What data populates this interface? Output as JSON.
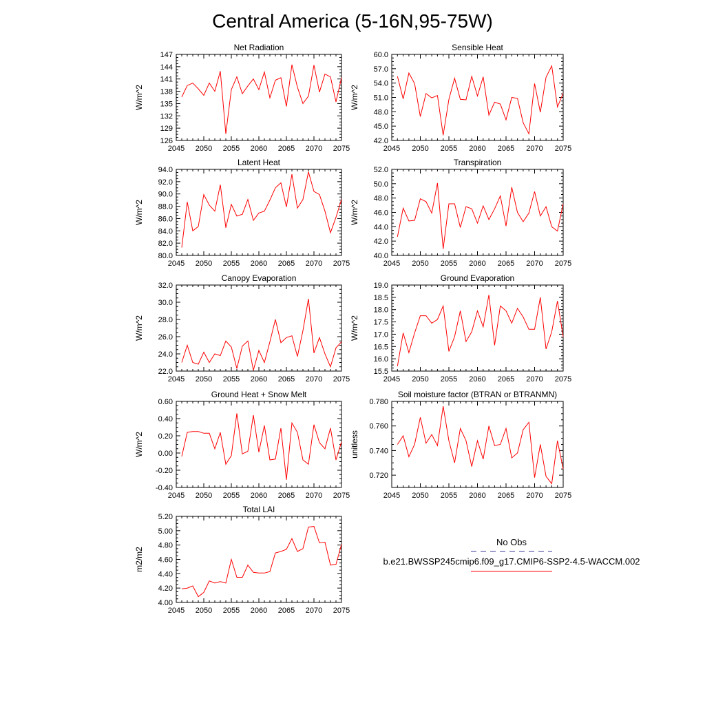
{
  "title": "Central America (5-16N,95-75W)",
  "colors": {
    "model_line": "#ff0000",
    "obs_line": "#3a3a9a",
    "axis": "#000000"
  },
  "legend": {
    "obs_label": "No Obs",
    "model_label": "b.e21.BWSSP245cmip6.f09_g17.CMIP6-SSP2-4.5-WACCM.002"
  },
  "chart_data": [
    {
      "type": "line",
      "title": "Net Radiation",
      "ylabel": "W/m^2",
      "xlim": [
        2045,
        2075
      ],
      "ylim": [
        126,
        147
      ],
      "xticks": [
        "2045",
        "2050",
        "2055",
        "2060",
        "2065",
        "2070",
        "2075"
      ],
      "yticks": [
        "126",
        "129",
        "132",
        "135",
        "138",
        "141",
        "144",
        "147"
      ],
      "series": [
        {
          "x": [
            2046,
            2047,
            2048,
            2049,
            2050,
            2051,
            2052,
            2053,
            2054,
            2055,
            2056,
            2057,
            2058,
            2059,
            2060,
            2061,
            2062,
            2063,
            2064,
            2065,
            2066,
            2067,
            2068,
            2069,
            2070,
            2071,
            2072,
            2073,
            2074,
            2075
          ],
          "values": [
            136.6,
            139.4,
            140.0,
            138.6,
            137.0,
            140.0,
            138.0,
            142.9,
            127.6,
            138.4,
            141.5,
            137.4,
            139.3,
            141.0,
            138.4,
            142.7,
            136.4,
            140.7,
            141.3,
            134.3,
            144.5,
            139.0,
            135.0,
            136.8,
            144.4,
            137.8,
            142.2,
            141.5,
            135.4,
            141.3
          ]
        }
      ]
    },
    {
      "type": "line",
      "title": "Sensible Heat",
      "ylabel": "W/m^2",
      "xlim": [
        2045,
        2075
      ],
      "ylim": [
        42,
        60
      ],
      "xticks": [
        "2045",
        "2050",
        "2055",
        "2060",
        "2065",
        "2070",
        "2075"
      ],
      "yticks": [
        "42.0",
        "45.0",
        "48.0",
        "51.0",
        "54.0",
        "57.0",
        "60.0"
      ],
      "series": [
        {
          "x": [
            2046,
            2047,
            2048,
            2049,
            2050,
            2051,
            2052,
            2053,
            2054,
            2055,
            2056,
            2057,
            2058,
            2059,
            2060,
            2061,
            2062,
            2063,
            2064,
            2065,
            2066,
            2067,
            2068,
            2069,
            2070,
            2071,
            2072,
            2073,
            2074,
            2075
          ],
          "values": [
            55.4,
            50.7,
            56.1,
            53.9,
            47.0,
            51.8,
            50.9,
            51.4,
            43.1,
            50.6,
            55.0,
            50.6,
            50.5,
            55.4,
            51.3,
            55.3,
            47.3,
            50.0,
            49.6,
            46.3,
            51.0,
            50.8,
            45.7,
            43.4,
            53.9,
            47.9,
            55.2,
            57.6,
            49.0,
            51.9
          ]
        }
      ]
    },
    {
      "type": "line",
      "title": "Latent Heat",
      "ylabel": "W/m^2",
      "xlim": [
        2045,
        2075
      ],
      "ylim": [
        80,
        94
      ],
      "xticks": [
        "2045",
        "2050",
        "2055",
        "2060",
        "2065",
        "2070",
        "2075"
      ],
      "yticks": [
        "80.0",
        "82.0",
        "84.0",
        "86.0",
        "88.0",
        "90.0",
        "92.0",
        "94.0"
      ],
      "series": [
        {
          "x": [
            2046,
            2047,
            2048,
            2049,
            2050,
            2051,
            2052,
            2053,
            2054,
            2055,
            2056,
            2057,
            2058,
            2059,
            2060,
            2061,
            2062,
            2063,
            2064,
            2065,
            2066,
            2067,
            2068,
            2069,
            2070,
            2071,
            2072,
            2073,
            2074,
            2075
          ],
          "values": [
            81.3,
            88.7,
            84.0,
            84.7,
            89.9,
            88.2,
            87.2,
            91.5,
            84.5,
            88.3,
            86.4,
            86.7,
            89.1,
            85.7,
            86.9,
            87.2,
            89.0,
            91.0,
            91.8,
            87.9,
            93.2,
            87.7,
            89.1,
            93.6,
            90.4,
            89.9,
            87.2,
            83.7,
            86.2,
            89.1
          ]
        }
      ]
    },
    {
      "type": "line",
      "title": "Transpiration",
      "ylabel": "W/m^2",
      "xlim": [
        2045,
        2075
      ],
      "ylim": [
        40,
        52
      ],
      "xticks": [
        "2045",
        "2050",
        "2055",
        "2060",
        "2065",
        "2070",
        "2075"
      ],
      "yticks": [
        "40.0",
        "42.0",
        "44.0",
        "46.0",
        "48.0",
        "50.0",
        "52.0"
      ],
      "series": [
        {
          "x": [
            2046,
            2047,
            2048,
            2049,
            2050,
            2051,
            2052,
            2053,
            2054,
            2055,
            2056,
            2057,
            2058,
            2059,
            2060,
            2061,
            2062,
            2063,
            2064,
            2065,
            2066,
            2067,
            2068,
            2069,
            2070,
            2071,
            2072,
            2073,
            2074,
            2075
          ],
          "values": [
            42.6,
            46.6,
            44.8,
            44.9,
            47.9,
            47.5,
            45.9,
            50.1,
            40.9,
            47.2,
            47.2,
            43.9,
            46.8,
            46.5,
            44.5,
            46.9,
            45.0,
            46.5,
            48.3,
            44.1,
            49.5,
            46.0,
            44.7,
            45.9,
            48.9,
            45.5,
            46.8,
            44.0,
            43.4,
            47.2
          ]
        }
      ]
    },
    {
      "type": "line",
      "title": "Canopy Evaporation",
      "ylabel": "W/m^2",
      "xlim": [
        2045,
        2075
      ],
      "ylim": [
        22,
        32
      ],
      "xticks": [
        "2045",
        "2050",
        "2055",
        "2060",
        "2065",
        "2070",
        "2075"
      ],
      "yticks": [
        "22.0",
        "24.0",
        "26.0",
        "28.0",
        "30.0",
        "32.0"
      ],
      "series": [
        {
          "x": [
            2046,
            2047,
            2048,
            2049,
            2050,
            2051,
            2052,
            2053,
            2054,
            2055,
            2056,
            2057,
            2058,
            2059,
            2060,
            2061,
            2062,
            2063,
            2064,
            2065,
            2066,
            2067,
            2068,
            2069,
            2070,
            2071,
            2072,
            2073,
            2074,
            2075
          ],
          "values": [
            23.0,
            25.0,
            23.0,
            22.8,
            24.2,
            23.0,
            24.0,
            23.8,
            25.5,
            24.8,
            22.3,
            24.9,
            25.5,
            22.1,
            24.4,
            23.0,
            25.4,
            28.0,
            25.3,
            25.9,
            26.1,
            23.7,
            26.7,
            30.4,
            24.1,
            25.9,
            24.0,
            22.5,
            24.7,
            25.4
          ]
        }
      ]
    },
    {
      "type": "line",
      "title": "Ground Evaporation",
      "ylabel": "W/m^2",
      "xlim": [
        2045,
        2075
      ],
      "ylim": [
        15.5,
        19.0
      ],
      "xticks": [
        "2045",
        "2050",
        "2055",
        "2060",
        "2065",
        "2070",
        "2075"
      ],
      "yticks": [
        "15.5",
        "16.0",
        "16.5",
        "17.0",
        "17.5",
        "18.0",
        "18.5",
        "19.0"
      ],
      "series": [
        {
          "x": [
            2046,
            2047,
            2048,
            2049,
            2050,
            2051,
            2052,
            2053,
            2054,
            2055,
            2056,
            2057,
            2058,
            2059,
            2060,
            2061,
            2062,
            2063,
            2064,
            2065,
            2066,
            2067,
            2068,
            2069,
            2070,
            2071,
            2072,
            2073,
            2074,
            2075
          ],
          "values": [
            15.7,
            17.05,
            16.25,
            17.05,
            17.75,
            17.75,
            17.45,
            17.6,
            18.15,
            16.3,
            16.9,
            17.95,
            16.7,
            17.1,
            17.95,
            17.3,
            18.6,
            16.55,
            18.15,
            17.95,
            17.45,
            18.05,
            17.7,
            17.2,
            17.2,
            18.5,
            16.4,
            17.1,
            18.35,
            16.9
          ]
        }
      ]
    },
    {
      "type": "line",
      "title": "Ground Heat + Snow Melt",
      "ylabel": "W/m^2",
      "xlim": [
        2045,
        2075
      ],
      "ylim": [
        -0.4,
        0.6
      ],
      "xticks": [
        "2045",
        "2050",
        "2055",
        "2060",
        "2065",
        "2070",
        "2075"
      ],
      "yticks": [
        "-0.40",
        "-0.20",
        "0.00",
        "0.20",
        "0.40",
        "0.60"
      ],
      "series": [
        {
          "x": [
            2046,
            2047,
            2048,
            2049,
            2050,
            2051,
            2052,
            2053,
            2054,
            2055,
            2056,
            2057,
            2058,
            2059,
            2060,
            2061,
            2062,
            2063,
            2064,
            2065,
            2066,
            2067,
            2068,
            2069,
            2070,
            2071,
            2072,
            2073,
            2074,
            2075
          ],
          "values": [
            -0.04,
            0.24,
            0.25,
            0.25,
            0.23,
            0.23,
            0.05,
            0.24,
            -0.13,
            -0.03,
            0.46,
            -0.01,
            0.02,
            0.44,
            0.01,
            0.32,
            -0.08,
            -0.07,
            0.29,
            -0.31,
            0.35,
            0.24,
            -0.08,
            -0.13,
            0.33,
            0.12,
            0.05,
            0.29,
            -0.08,
            0.13
          ]
        }
      ]
    },
    {
      "type": "line",
      "title": "Soil moisture factor (BTRAN or BTRANMN)",
      "ylabel": "unitless",
      "xlim": [
        2045,
        2075
      ],
      "ylim": [
        0.71,
        0.78
      ],
      "xticks": [
        "2045",
        "2050",
        "2055",
        "2060",
        "2065",
        "2070",
        "2075"
      ],
      "yticks": [
        "0.720",
        "0.740",
        "0.760",
        "0.780"
      ],
      "series": [
        {
          "x": [
            2046,
            2047,
            2048,
            2049,
            2050,
            2051,
            2052,
            2053,
            2054,
            2055,
            2056,
            2057,
            2058,
            2059,
            2060,
            2061,
            2062,
            2063,
            2064,
            2065,
            2066,
            2067,
            2068,
            2069,
            2070,
            2071,
            2072,
            2073,
            2074,
            2075
          ],
          "values": [
            0.745,
            0.752,
            0.735,
            0.745,
            0.767,
            0.746,
            0.753,
            0.744,
            0.776,
            0.748,
            0.73,
            0.758,
            0.748,
            0.727,
            0.748,
            0.733,
            0.76,
            0.744,
            0.745,
            0.758,
            0.734,
            0.738,
            0.757,
            0.763,
            0.718,
            0.745,
            0.719,
            0.713,
            0.748,
            0.725
          ]
        }
      ]
    },
    {
      "type": "line",
      "title": "Total LAI",
      "ylabel": "m2/m2",
      "xlim": [
        2045,
        2075
      ],
      "ylim": [
        4.0,
        5.2
      ],
      "xticks": [
        "2045",
        "2050",
        "2055",
        "2060",
        "2065",
        "2070",
        "2075"
      ],
      "yticks": [
        "4.00",
        "4.20",
        "4.40",
        "4.60",
        "4.80",
        "5.00",
        "5.20"
      ],
      "series": [
        {
          "x": [
            2046,
            2047,
            2048,
            2049,
            2050,
            2051,
            2052,
            2053,
            2054,
            2055,
            2056,
            2057,
            2058,
            2059,
            2060,
            2061,
            2062,
            2063,
            2064,
            2065,
            2066,
            2067,
            2068,
            2069,
            2070,
            2071,
            2072,
            2073,
            2074,
            2075
          ],
          "values": [
            4.19,
            4.2,
            4.23,
            4.08,
            4.14,
            4.3,
            4.27,
            4.29,
            4.27,
            4.6,
            4.35,
            4.35,
            4.52,
            4.42,
            4.41,
            4.41,
            4.43,
            4.69,
            4.71,
            4.74,
            4.89,
            4.71,
            4.75,
            5.05,
            5.06,
            4.83,
            4.84,
            4.52,
            4.53,
            4.81
          ]
        }
      ]
    }
  ]
}
